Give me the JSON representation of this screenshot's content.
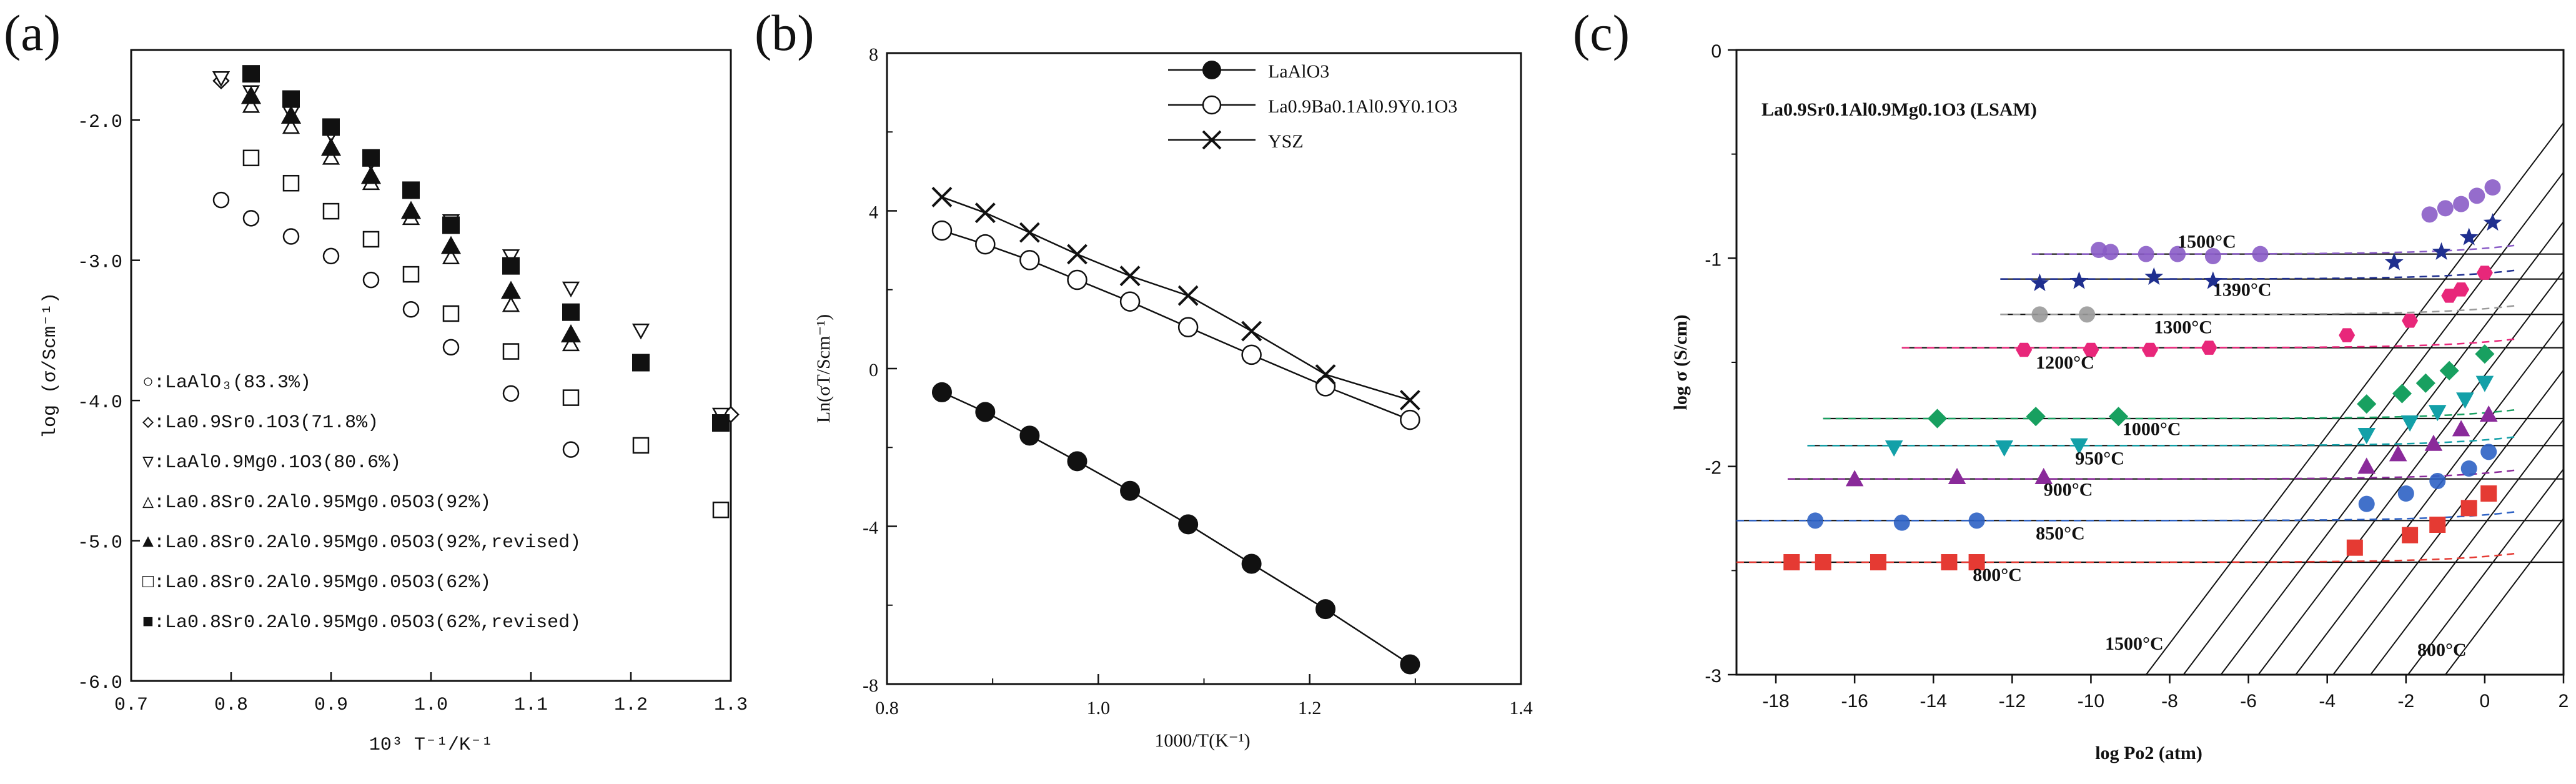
{
  "panels": {
    "a": "(a)",
    "b": "(b)",
    "c": "(c)"
  },
  "colors": {
    "axis": "#111111",
    "violet": "#8a5cc7",
    "navy": "#1f2f8f",
    "pink": "#e8277a",
    "green": "#18a060",
    "teal": "#13a0a8",
    "purple": "#8a2a9a",
    "blue": "#2e62c4",
    "red": "#e53a33"
  },
  "chart_data": [
    {
      "panel": "(a)",
      "type": "scatter",
      "xlabel": "10³ T⁻¹/K⁻¹",
      "ylabel": "log (σ/Scm⁻¹)",
      "xlim": [
        0.7,
        1.3
      ],
      "ylim": [
        -6.0,
        -1.5
      ],
      "xticks": [
        "0.7",
        "0.8",
        "0.9",
        "1.0",
        "1.1",
        "1.2",
        "1.3"
      ],
      "yticks": [
        "-2.0",
        "-3.0",
        "-4.0",
        "-5.0",
        "-6.0"
      ],
      "ytick_values": [
        -2.0,
        -3.0,
        -4.0,
        -5.0,
        -6.0
      ],
      "legend": [
        {
          "marker": "circle-open",
          "label": "○:LaAlO₃(83.3%)"
        },
        {
          "marker": "diamond-open",
          "label": "◇:La0.9Sr0.1O3(71.8%)"
        },
        {
          "marker": "tri-down-open",
          "label": "▽:LaAl0.9Mg0.1O3(80.6%)"
        },
        {
          "marker": "tri-up-open",
          "label": "△:La0.8Sr0.2Al0.95Mg0.05O3(92%)"
        },
        {
          "marker": "tri-up-filled",
          "label": "▲:La0.8Sr0.2Al0.95Mg0.05O3(92%,revised)"
        },
        {
          "marker": "square-open",
          "label": "□:La0.8Sr0.2Al0.95Mg0.05O3(62%)"
        },
        {
          "marker": "square-filled",
          "label": "■:La0.8Sr0.2Al0.95Mg0.05O3(62%,revised)"
        }
      ],
      "series": [
        {
          "name": "LaAlO3 (83.3%)",
          "marker": "circle-open",
          "x": [
            0.79,
            0.82,
            0.86,
            0.9,
            0.94,
            0.98,
            1.02,
            1.08,
            1.14
          ],
          "y": [
            -2.57,
            -2.7,
            -2.83,
            -2.97,
            -3.14,
            -3.35,
            -3.62,
            -3.95,
            -4.35
          ]
        },
        {
          "name": "La0.9Sr0.1O3 (71.8%)",
          "marker": "diamond-open",
          "x": [
            0.79,
            1.3
          ],
          "y": [
            -1.72,
            -4.1
          ]
        },
        {
          "name": "LaAl0.9Mg0.1O3 (80.6%)",
          "marker": "tri-down-open",
          "x": [
            0.79,
            0.82,
            0.86,
            0.9,
            0.94,
            0.98,
            1.02,
            1.08,
            1.14,
            1.21,
            1.29
          ],
          "y": [
            -1.7,
            -1.8,
            -1.95,
            -2.1,
            -2.3,
            -2.5,
            -2.72,
            -2.97,
            -3.2,
            -3.5,
            -4.1
          ]
        },
        {
          "name": "La0.8Sr0.2Al0.95Mg0.05O3 (92%)",
          "marker": "tri-up-open",
          "x": [
            0.82,
            0.86,
            0.9,
            0.94,
            0.98,
            1.02,
            1.08,
            1.14
          ],
          "y": [
            -1.9,
            -2.05,
            -2.27,
            -2.45,
            -2.7,
            -2.98,
            -3.32,
            -3.6
          ]
        },
        {
          "name": "La0.8Sr0.2Al0.95Mg0.05O3 (92%, revised)",
          "marker": "tri-up-filled",
          "x": [
            0.82,
            0.86,
            0.9,
            0.94,
            0.98,
            1.02,
            1.08,
            1.14
          ],
          "y": [
            -1.83,
            -1.97,
            -2.2,
            -2.4,
            -2.65,
            -2.9,
            -3.22,
            -3.53
          ]
        },
        {
          "name": "La0.8Sr0.2Al0.95Mg0.05O3 (62%)",
          "marker": "square-open",
          "x": [
            0.82,
            0.86,
            0.9,
            0.94,
            0.98,
            1.02,
            1.08,
            1.14,
            1.21,
            1.29
          ],
          "y": [
            -2.27,
            -2.45,
            -2.65,
            -2.85,
            -3.1,
            -3.38,
            -3.65,
            -3.98,
            -4.32,
            -4.78
          ]
        },
        {
          "name": "La0.8Sr0.2Al0.95Mg0.05O3 (62%, revised)",
          "marker": "square-filled",
          "x": [
            0.82,
            0.86,
            0.9,
            0.94,
            0.98,
            1.02,
            1.08,
            1.14,
            1.21,
            1.29
          ],
          "y": [
            -1.67,
            -1.85,
            -2.05,
            -2.27,
            -2.5,
            -2.75,
            -3.04,
            -3.37,
            -3.73,
            -4.16
          ]
        }
      ]
    },
    {
      "panel": "(b)",
      "type": "line",
      "xlabel": "1000/T(K⁻¹)",
      "ylabel": "Ln(σT/Scm⁻¹)",
      "xlim": [
        0.8,
        1.4
      ],
      "ylim": [
        -8,
        8
      ],
      "xticks": [
        "0.8",
        "1.0",
        "1.2",
        "1.4"
      ],
      "xtick_values": [
        0.8,
        1.0,
        1.2,
        1.4
      ],
      "yticks": [
        "8",
        "4",
        "0",
        "-4",
        "-8"
      ],
      "ytick_values": [
        8,
        4,
        0,
        -4,
        -8
      ],
      "legend": [
        "LaAlO3",
        "La0.9Ba0.1Al0.9Y0.1O3",
        "YSZ"
      ],
      "series": [
        {
          "name": "LaAlO3",
          "marker": "circle-filled",
          "x": [
            0.852,
            0.893,
            0.935,
            0.98,
            1.03,
            1.085,
            1.145,
            1.215,
            1.295
          ],
          "y": [
            -0.6,
            -1.1,
            -1.7,
            -2.35,
            -3.1,
            -3.95,
            -4.95,
            -6.1,
            -7.5
          ]
        },
        {
          "name": "La0.9Ba0.1Al0.9Y0.1O3",
          "marker": "circle-open",
          "x": [
            0.852,
            0.893,
            0.935,
            0.98,
            1.03,
            1.085,
            1.145,
            1.215,
            1.295
          ],
          "y": [
            3.5,
            3.15,
            2.75,
            2.25,
            1.7,
            1.05,
            0.35,
            -0.45,
            -1.3
          ]
        },
        {
          "name": "YSZ",
          "marker": "x",
          "x": [
            0.852,
            0.893,
            0.935,
            0.98,
            1.03,
            1.085,
            1.145,
            1.215,
            1.295
          ],
          "y": [
            4.35,
            3.95,
            3.45,
            2.9,
            2.35,
            1.85,
            0.95,
            -0.15,
            -0.8
          ]
        }
      ]
    },
    {
      "panel": "(c)",
      "type": "scatter",
      "title": "La0.9Sr0.1Al0.9Mg0.1O3 (LSAM)",
      "xlabel": "log Po2 (atm)",
      "ylabel": "log σ (S/cm)",
      "xlim": [
        -19,
        2
      ],
      "ylim": [
        -3,
        0
      ],
      "xticks": [
        "-18",
        "-16",
        "-14",
        "-12",
        "-10",
        "-8",
        "-6",
        "-4",
        "-2",
        "0",
        "2"
      ],
      "xtick_values": [
        -18,
        -16,
        -14,
        -12,
        -10,
        -8,
        -6,
        -4,
        -2,
        0,
        2
      ],
      "yticks": [
        "0",
        "-1",
        "-2",
        "-3"
      ],
      "ytick_values": [
        0,
        -1,
        -2,
        -3
      ],
      "annotations": [
        "1500°C",
        "800°C"
      ],
      "series": [
        {
          "name": "1500°C",
          "label": "1500°C",
          "color": "violet",
          "marker": "sphere",
          "level": -0.98,
          "xstart": -11.5,
          "x": [
            -9.8,
            -9.5,
            -8.6,
            -7.8,
            -6.9,
            -5.7,
            -1.4,
            -1.0,
            -0.6,
            -0.2,
            0.2
          ],
          "y": [
            -0.96,
            -0.97,
            -0.98,
            -0.98,
            -0.99,
            -0.98,
            -0.79,
            -0.76,
            -0.74,
            -0.7,
            -0.66
          ]
        },
        {
          "name": "1390°C",
          "label": "1390°C",
          "color": "navy",
          "marker": "star",
          "level": -1.1,
          "xstart": -12.3,
          "x": [
            -11.3,
            -10.3,
            -8.4,
            -6.9,
            -2.3,
            -1.1,
            -0.4,
            0.2
          ],
          "y": [
            -1.12,
            -1.11,
            -1.09,
            -1.11,
            -1.02,
            -0.97,
            -0.9,
            -0.83
          ]
        },
        {
          "name": "1300°C",
          "label": "1300°C",
          "color": "gray",
          "marker": "circle",
          "level": -1.27,
          "xstart": -12.3,
          "x": [
            -11.3,
            -10.1
          ],
          "y": [
            -1.27,
            -1.27
          ]
        },
        {
          "name": "1200°C",
          "label": "1200°C",
          "color": "pink",
          "marker": "hexagon",
          "level": -1.43,
          "xstart": -14.8,
          "x": [
            -11.7,
            -10.0,
            -8.5,
            -7.0,
            -3.5,
            -1.9,
            -0.9,
            -0.6,
            0.0
          ],
          "y": [
            -1.44,
            -1.44,
            -1.44,
            -1.43,
            -1.37,
            -1.3,
            -1.18,
            -1.15,
            -1.07
          ]
        },
        {
          "name": "1000°C",
          "label": "1000°C",
          "color": "green",
          "marker": "diamond",
          "level": -1.77,
          "xstart": -16.8,
          "x": [
            -13.9,
            -11.4,
            -9.3,
            -3.0,
            -2.1,
            -1.5,
            -0.9,
            0.0
          ],
          "y": [
            -1.77,
            -1.76,
            -1.76,
            -1.7,
            -1.65,
            -1.6,
            -1.54,
            -1.46
          ]
        },
        {
          "name": "950°C",
          "label": "950°C",
          "color": "teal",
          "marker": "tri-down",
          "level": -1.9,
          "xstart": -17.2,
          "x": [
            -15.0,
            -12.2,
            -10.3,
            -3.0,
            -1.9,
            -1.2,
            -0.5,
            0.0
          ],
          "y": [
            -1.91,
            -1.91,
            -1.9,
            -1.85,
            -1.79,
            -1.74,
            -1.68,
            -1.6
          ]
        },
        {
          "name": "900°C",
          "label": "900°C",
          "color": "purple",
          "marker": "tri-up",
          "level": -2.06,
          "xstart": -17.7,
          "x": [
            -16.0,
            -13.4,
            -11.2,
            -3.0,
            -2.2,
            -1.3,
            -0.6,
            0.1
          ],
          "y": [
            -2.06,
            -2.05,
            -2.05,
            -2.0,
            -1.94,
            -1.89,
            -1.82,
            -1.75
          ]
        },
        {
          "name": "850°C",
          "label": "850°C",
          "color": "blue",
          "marker": "circle",
          "level": -2.26,
          "xstart": -19,
          "x": [
            -17.0,
            -14.8,
            -12.9,
            -3.0,
            -2.0,
            -1.2,
            -0.4,
            0.1
          ],
          "y": [
            -2.26,
            -2.27,
            -2.26,
            -2.18,
            -2.13,
            -2.07,
            -2.01,
            -1.93
          ]
        },
        {
          "name": "800°C",
          "label": "800°C",
          "color": "red",
          "marker": "square",
          "level": -2.46,
          "xstart": -19,
          "x": [
            -17.6,
            -16.8,
            -15.4,
            -13.6,
            -12.9,
            -3.3,
            -1.9,
            -1.2,
            -0.4,
            0.1
          ],
          "y": [
            -2.46,
            -2.46,
            -2.46,
            -2.46,
            -2.46,
            -2.39,
            -2.33,
            -2.28,
            -2.2,
            -2.13
          ]
        }
      ]
    }
  ]
}
